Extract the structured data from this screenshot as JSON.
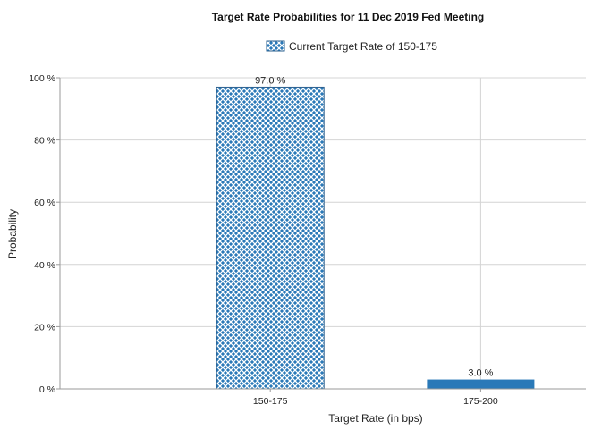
{
  "chart_data": {
    "type": "bar",
    "title": "Target Rate Probabilities for 11 Dec 2019 Fed Meeting",
    "legend": {
      "entries": [
        "Current Target Rate of 150-175"
      ],
      "placement": "top-center"
    },
    "xlabel": "Target Rate (in bps)",
    "ylabel": "Probability",
    "categories": [
      "150-175",
      "175-200"
    ],
    "values": [
      97.0,
      3.0
    ],
    "data_labels": [
      "97.0 %",
      "3.0 %"
    ],
    "ylim": [
      0,
      100
    ],
    "yticks": [
      0,
      20,
      40,
      60,
      80,
      100
    ],
    "ytick_labels": [
      "0 %",
      "20 %",
      "40 %",
      "60 %",
      "80 %",
      "100 %"
    ],
    "grid": true,
    "bar_styles": [
      "crosshatch",
      "solid"
    ],
    "colors": {
      "bar": "#2a79b8",
      "hatch": "#ffffff",
      "grid": "#d4d4d4",
      "axis": "#9a9a9a"
    }
  }
}
